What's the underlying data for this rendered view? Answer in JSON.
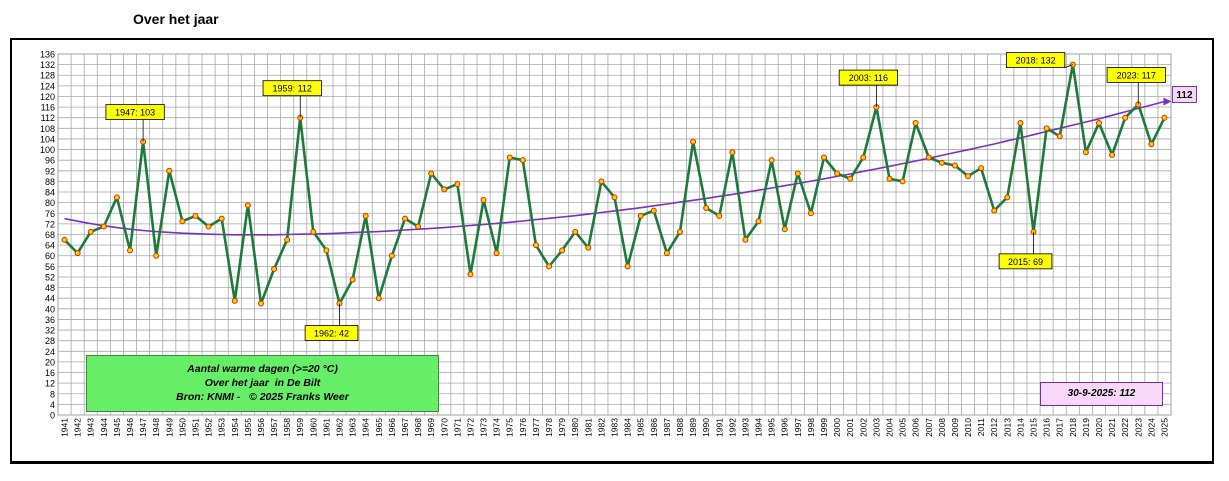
{
  "header": {
    "title": "Over het jaar"
  },
  "legend_box": {
    "line1": "Aantal warme dagen (>=20 °C)",
    "line2": "Over het jaar  in De Bilt",
    "line3": "Bron: KNMI -   © 2025 Franks Weer"
  },
  "date_box": {
    "label": "30-9-2025: 112"
  },
  "colors": {
    "series_line": "#1e7a3a",
    "marker_fill": "#ffd000",
    "marker_edge": "#d03000",
    "trend_line": "#7b2fbe",
    "grid": "#a8a8a8",
    "callout_fill": "#ffff00",
    "legend_fill": "#66ee66",
    "date_box_fill": "#f8d8f8"
  },
  "chart_data": {
    "type": "line",
    "title": "Over het jaar",
    "xlabel": "",
    "ylabel": "",
    "ylim": [
      0,
      136
    ],
    "y_tick_step": 4,
    "grid": true,
    "x": [
      1941,
      1942,
      1943,
      1944,
      1945,
      1946,
      1947,
      1948,
      1949,
      1950,
      1951,
      1952,
      1953,
      1954,
      1955,
      1956,
      1957,
      1958,
      1959,
      1960,
      1961,
      1962,
      1963,
      1964,
      1965,
      1966,
      1967,
      1968,
      1969,
      1970,
      1971,
      1972,
      1973,
      1974,
      1975,
      1976,
      1977,
      1978,
      1979,
      1980,
      1981,
      1982,
      1983,
      1984,
      1985,
      1986,
      1987,
      1988,
      1989,
      1990,
      1991,
      1992,
      1993,
      1994,
      1995,
      1996,
      1997,
      1998,
      1999,
      2000,
      2001,
      2002,
      2003,
      2004,
      2005,
      2006,
      2007,
      2008,
      2009,
      2010,
      2011,
      2012,
      2013,
      2014,
      2015,
      2016,
      2017,
      2018,
      2019,
      2020,
      2021,
      2022,
      2023,
      2024,
      2025
    ],
    "series": [
      {
        "values": [
          66,
          61,
          69,
          71,
          82,
          62,
          103,
          60,
          92,
          73,
          75,
          71,
          74,
          43,
          79,
          42,
          55,
          66,
          112,
          69,
          62,
          42,
          51,
          75,
          44,
          60,
          74,
          71,
          91,
          85,
          87,
          53,
          81,
          61,
          97,
          96,
          64,
          56,
          62,
          69,
          63,
          88,
          82,
          56,
          75,
          77,
          61,
          69,
          103,
          78,
          75,
          99,
          66,
          73,
          96,
          70,
          91,
          76,
          97,
          91,
          89,
          97,
          116,
          89,
          88,
          110,
          97,
          95,
          94,
          90,
          93,
          77,
          82,
          110,
          69,
          108,
          105,
          132,
          99,
          110,
          98,
          112,
          117,
          102,
          112
        ]
      }
    ],
    "trend": {
      "label": "112",
      "values": [
        74,
        73,
        72.1,
        71.3,
        70.6,
        70,
        69.5,
        69.1,
        68.8,
        68.5,
        68.3,
        68.1,
        68,
        67.9,
        67.9,
        67.9,
        67.9,
        68,
        68.1,
        68.2,
        68.3,
        68.5,
        68.7,
        68.9,
        69.1,
        69.4,
        69.7,
        70,
        70.3,
        70.6,
        71,
        71.4,
        71.8,
        72.2,
        72.6,
        73.1,
        73.6,
        74.1,
        74.6,
        75.1,
        75.7,
        76.3,
        76.9,
        77.5,
        78.1,
        78.8,
        79.5,
        80.2,
        80.9,
        81.6,
        82.4,
        83.1,
        83.9,
        84.7,
        85.5,
        86.4,
        87.2,
        88.1,
        89,
        89.9,
        90.8,
        91.8,
        92.7,
        93.7,
        94.7,
        95.7,
        96.7,
        97.8,
        98.9,
        99.9,
        101,
        102.1,
        103.3,
        104.4,
        105.6,
        106.8,
        108,
        109.2,
        110.4,
        111.6,
        112.9,
        114.2,
        115.5,
        116.8,
        118.1
      ]
    },
    "annotations": [
      {
        "label": "1947: 103",
        "year": 1947,
        "value": 103
      },
      {
        "label": "1959: 112",
        "year": 1959,
        "value": 112
      },
      {
        "label": "1962: 42",
        "year": 1962,
        "value": 42
      },
      {
        "label": "2003: 116",
        "year": 2003,
        "value": 116
      },
      {
        "label": "2015: 69",
        "year": 2015,
        "value": 69
      },
      {
        "label": "2018: 132",
        "year": 2018,
        "value": 132
      },
      {
        "label": "2023: 117",
        "year": 2023,
        "value": 117
      }
    ]
  }
}
